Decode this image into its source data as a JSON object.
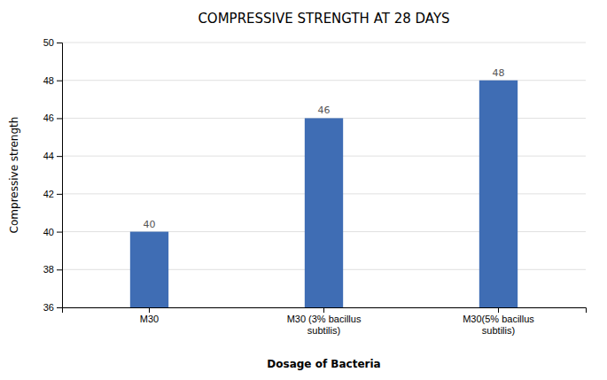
{
  "chart_data": {
    "type": "bar",
    "title": "COMPRESSIVE STRENGTH AT 28 DAYS",
    "xlabel": "Dosage of Bacteria",
    "ylabel": "Compressive strength",
    "categories": [
      "M30",
      "M30 (3% bacillus\nsubtilis)",
      "M30(5% bacillus\nsubtilis)"
    ],
    "values": [
      40,
      46,
      48
    ],
    "color": "#3F6DB4",
    "ylim": [
      36,
      50
    ],
    "yticks": [
      36,
      38,
      40,
      42,
      44,
      46,
      48,
      50
    ],
    "grid": true,
    "data_labels": true
  }
}
